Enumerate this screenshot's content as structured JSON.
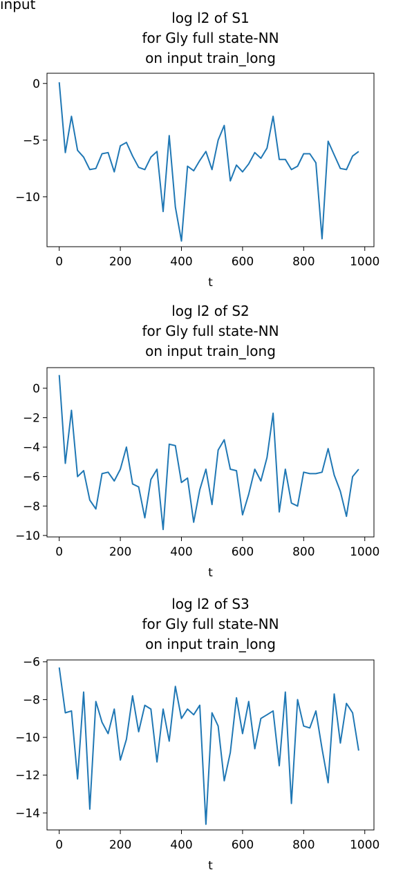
{
  "header": {
    "fragment_text": "input"
  },
  "colors": {
    "line": "#1f77b4",
    "axis": "#000000"
  },
  "chart_data": [
    {
      "type": "line",
      "title": [
        "log l2 of S1",
        "for Gly full state-NN",
        "on input train_long"
      ],
      "xlabel": "t",
      "ylabel": "",
      "xlim": [
        -40,
        1030
      ],
      "ylim": [
        -14.4,
        0.9
      ],
      "xticks": [
        0,
        200,
        400,
        600,
        800,
        1000
      ],
      "yticks": [
        0,
        -5,
        -10
      ],
      "x": [
        0,
        20,
        40,
        60,
        80,
        100,
        120,
        140,
        160,
        180,
        200,
        220,
        240,
        260,
        280,
        300,
        320,
        340,
        360,
        380,
        400,
        420,
        440,
        460,
        480,
        500,
        520,
        540,
        560,
        580,
        600,
        620,
        640,
        660,
        680,
        700,
        720,
        740,
        760,
        780,
        800,
        820,
        840,
        860,
        880,
        900,
        920,
        940,
        960,
        980
      ],
      "series": [
        {
          "values": [
            0.1,
            -6.1,
            -2.9,
            -5.9,
            -6.5,
            -7.6,
            -7.5,
            -6.2,
            -6.1,
            -7.8,
            -5.5,
            -5.2,
            -6.4,
            -7.4,
            -7.6,
            -6.5,
            -6.0,
            -11.3,
            -4.6,
            -10.9,
            -13.9,
            -7.3,
            -7.7,
            -6.8,
            -6.0,
            -7.6,
            -5.0,
            -3.7,
            -8.6,
            -7.2,
            -7.8,
            -7.1,
            -6.1,
            -6.6,
            -5.7,
            -2.9,
            -6.7,
            -6.7,
            -7.6,
            -7.3,
            -6.2,
            -6.2,
            -7.0,
            -13.7,
            -5.1,
            -6.3,
            -7.5,
            -7.6,
            -6.4,
            -6.0
          ]
        }
      ]
    },
    {
      "type": "line",
      "title": [
        "log l2 of S2",
        "for Gly full state-NN",
        "on input train_long"
      ],
      "xlabel": "t",
      "ylabel": "",
      "xlim": [
        -40,
        1030
      ],
      "ylim": [
        -10.1,
        1.4
      ],
      "xticks": [
        0,
        200,
        400,
        600,
        800,
        1000
      ],
      "yticks": [
        0,
        -2,
        -4,
        -6,
        -8,
        -10
      ],
      "x": [
        0,
        20,
        40,
        60,
        80,
        100,
        120,
        140,
        160,
        180,
        200,
        220,
        240,
        260,
        280,
        300,
        320,
        340,
        360,
        380,
        400,
        420,
        440,
        460,
        480,
        500,
        520,
        540,
        560,
        580,
        600,
        620,
        640,
        660,
        680,
        700,
        720,
        740,
        760,
        780,
        800,
        820,
        840,
        860,
        880,
        900,
        920,
        940,
        960,
        980
      ],
      "series": [
        {
          "values": [
            0.9,
            -5.1,
            -1.5,
            -6.0,
            -5.6,
            -7.6,
            -8.2,
            -5.8,
            -5.7,
            -6.3,
            -5.5,
            -4.0,
            -6.5,
            -6.7,
            -8.8,
            -6.2,
            -5.5,
            -9.6,
            -3.8,
            -3.9,
            -6.4,
            -6.1,
            -9.1,
            -6.9,
            -5.5,
            -7.9,
            -4.2,
            -3.5,
            -5.5,
            -5.6,
            -8.6,
            -7.2,
            -5.5,
            -6.3,
            -4.7,
            -1.7,
            -8.4,
            -5.5,
            -7.8,
            -8.0,
            -5.7,
            -5.8,
            -5.8,
            -5.7,
            -4.1,
            -5.9,
            -7.0,
            -8.7,
            -6.0,
            -5.5
          ]
        }
      ]
    },
    {
      "type": "line",
      "title": [
        "log l2 of S3",
        "for Gly full state-NN",
        "on input train_long"
      ],
      "xlabel": "t",
      "ylabel": "",
      "xlim": [
        -40,
        1030
      ],
      "ylim": [
        -14.9,
        -5.9
      ],
      "xticks": [
        0,
        200,
        400,
        600,
        800,
        1000
      ],
      "yticks": [
        -6,
        -8,
        -10,
        -12,
        -14
      ],
      "x": [
        0,
        20,
        40,
        60,
        80,
        100,
        120,
        140,
        160,
        180,
        200,
        220,
        240,
        260,
        280,
        300,
        320,
        340,
        360,
        380,
        400,
        420,
        440,
        460,
        480,
        500,
        520,
        540,
        560,
        580,
        600,
        620,
        640,
        660,
        680,
        700,
        720,
        740,
        760,
        780,
        800,
        820,
        840,
        860,
        880,
        900,
        920,
        940,
        960,
        980
      ],
      "series": [
        {
          "values": [
            -6.3,
            -8.7,
            -8.6,
            -12.2,
            -7.6,
            -13.8,
            -8.1,
            -9.2,
            -9.8,
            -8.5,
            -11.2,
            -10.1,
            -7.8,
            -9.7,
            -8.3,
            -8.5,
            -11.3,
            -8.5,
            -10.2,
            -7.3,
            -9.0,
            -8.5,
            -8.8,
            -8.3,
            -14.6,
            -8.7,
            -9.4,
            -12.3,
            -10.8,
            -7.9,
            -9.8,
            -8.1,
            -10.6,
            -9.0,
            -8.8,
            -8.6,
            -11.5,
            -7.6,
            -13.5,
            -8.0,
            -9.4,
            -9.5,
            -8.6,
            -10.6,
            -12.4,
            -7.7,
            -10.3,
            -8.2,
            -8.7,
            -10.7
          ]
        }
      ]
    }
  ]
}
